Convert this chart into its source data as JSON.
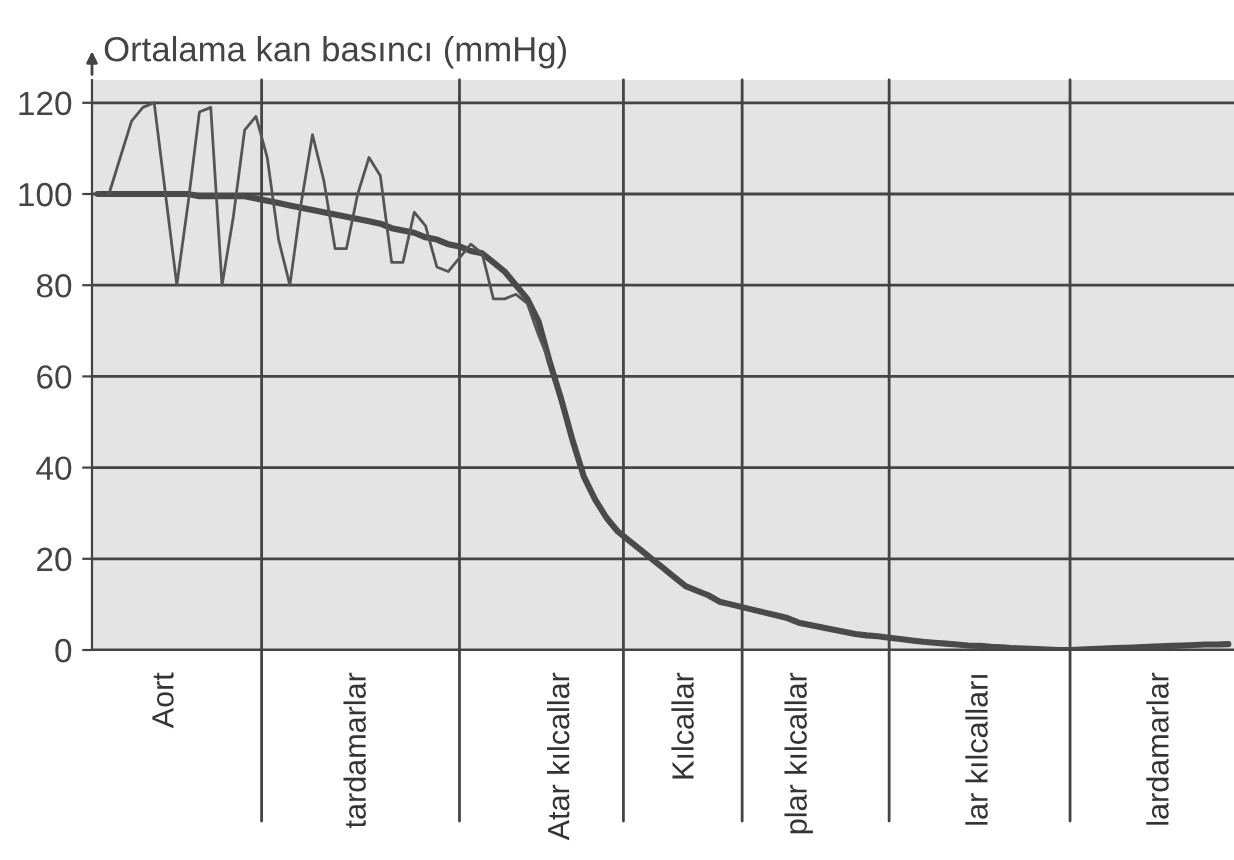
{
  "chart_data": {
    "type": "line",
    "ylabel": "Ortalama kan basıncı (mmHg)",
    "categories": [
      null,
      null,
      null,
      null,
      null,
      null,
      "Aort",
      null,
      null,
      null,
      null,
      null,
      null,
      null,
      null,
      null,
      null,
      null,
      null,
      null,
      null,
      null,
      null,
      "tardamarlar",
      null,
      null,
      null,
      null,
      null,
      null,
      null,
      null,
      null,
      null,
      null,
      null,
      null,
      null,
      null,
      null,
      null,
      "Atar kılcallar",
      null,
      null,
      null,
      null,
      null,
      null,
      null,
      null,
      null,
      null,
      "Kılcallar",
      null,
      null,
      null,
      null,
      null,
      null,
      null,
      null,
      null,
      "plar kılcallar",
      null,
      null,
      null,
      null,
      null,
      null,
      null,
      null,
      null,
      null,
      null,
      null,
      null,
      null,
      null,
      "lar kılcalları",
      null,
      null,
      null,
      null,
      null,
      null,
      null,
      null,
      null,
      null,
      null,
      null,
      null,
      null,
      null,
      "lardamarlar",
      null,
      null,
      null,
      null,
      null,
      null
    ],
    "ylim": [
      0,
      125
    ],
    "yticks": [
      0,
      20,
      40,
      60,
      80,
      100,
      120
    ],
    "grid": "y",
    "series": [
      {
        "color": "#4a4a4a",
        "values": [
          100,
          100,
          100,
          100,
          100,
          100,
          100,
          100,
          100,
          99.5,
          99.5,
          99.5,
          99.5,
          99.5,
          99,
          98.5,
          98,
          97.5,
          97,
          96.5,
          96,
          95.5,
          95,
          94.5,
          94,
          93.5,
          92.5,
          92,
          91.5,
          90.5,
          90,
          89,
          88.5,
          87.5,
          87,
          85,
          83,
          80,
          77,
          72,
          63,
          55,
          46,
          38,
          33,
          29,
          26,
          24,
          22,
          20,
          18,
          16,
          14,
          13,
          12,
          10.6,
          10,
          9.4,
          8.8,
          8.2,
          7.6,
          7,
          6,
          5.5,
          5,
          4.5,
          4,
          3.5,
          3.2,
          3,
          2.7,
          2.4,
          2.1,
          1.8,
          1.6,
          1.4,
          1.2,
          1,
          0.9,
          0.7,
          0.6,
          0.4,
          0.3,
          0.2,
          0.1,
          0,
          0,
          0.1,
          0.2,
          0.3,
          0.4,
          0.5,
          0.6,
          0.7,
          0.8,
          0.9,
          1,
          1.1,
          1.2,
          1.2,
          1.3
        ]
      },
      {
        "color": "#555555",
        "values": [
          null,
          100,
          108,
          116,
          119,
          120,
          100,
          80,
          98,
          118,
          119,
          80,
          95,
          114,
          117,
          108,
          90,
          80,
          98,
          113,
          103,
          88,
          88,
          100,
          108,
          104,
          85,
          85,
          96,
          93,
          84,
          83,
          86,
          89,
          87,
          77,
          77,
          78,
          76,
          69,
          63,
          null,
          null,
          null,
          null,
          null,
          null,
          null,
          null,
          null,
          null,
          null,
          null,
          null,
          null,
          null,
          null,
          null,
          null,
          null,
          null,
          null,
          null,
          null,
          null,
          null,
          null,
          null,
          null,
          null,
          null,
          null,
          null,
          null,
          null,
          null,
          null,
          null,
          null,
          null,
          null,
          null,
          null,
          null,
          null,
          null,
          null,
          null,
          null,
          null,
          null,
          null,
          null,
          null,
          null,
          null,
          null,
          null,
          null,
          null,
          null
        ]
      }
    ]
  }
}
